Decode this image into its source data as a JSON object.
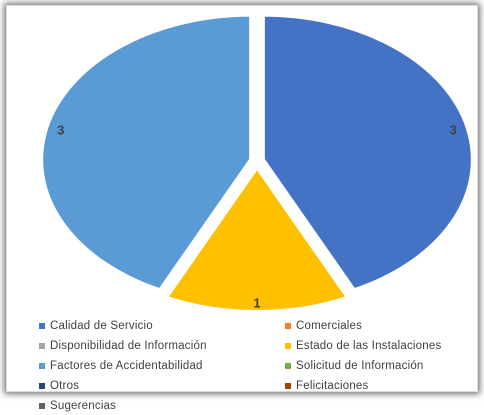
{
  "chart_data": {
    "type": "pie",
    "title": "",
    "slices": [
      {
        "name": "Calidad de Servicio",
        "value": 3,
        "label": "3",
        "color": "#4472C4"
      },
      {
        "name": "Comerciales",
        "value": 0,
        "label": "",
        "color": "#ED7D31"
      },
      {
        "name": "Disponibilidad de Información",
        "value": 0,
        "label": "",
        "color": "#A5A5A5"
      },
      {
        "name": "Estado de las Instalaciones",
        "value": 1,
        "label": "1",
        "color": "#FFC000"
      },
      {
        "name": "Factores de Accidentabilidad",
        "value": 3,
        "label": "3",
        "color": "#5B9BD5"
      },
      {
        "name": "Solicitud de Información",
        "value": 0,
        "label": "",
        "color": "#70AD47"
      },
      {
        "name": "Otros",
        "value": 0,
        "label": "",
        "color": "#264478"
      },
      {
        "name": "Felicitaciones",
        "value": 0,
        "label": "",
        "color": "#9E480E"
      },
      {
        "name": "Sugerencias",
        "value": 0,
        "label": "",
        "color": "#636363"
      }
    ],
    "legend_position": "bottom",
    "exploded": true
  }
}
